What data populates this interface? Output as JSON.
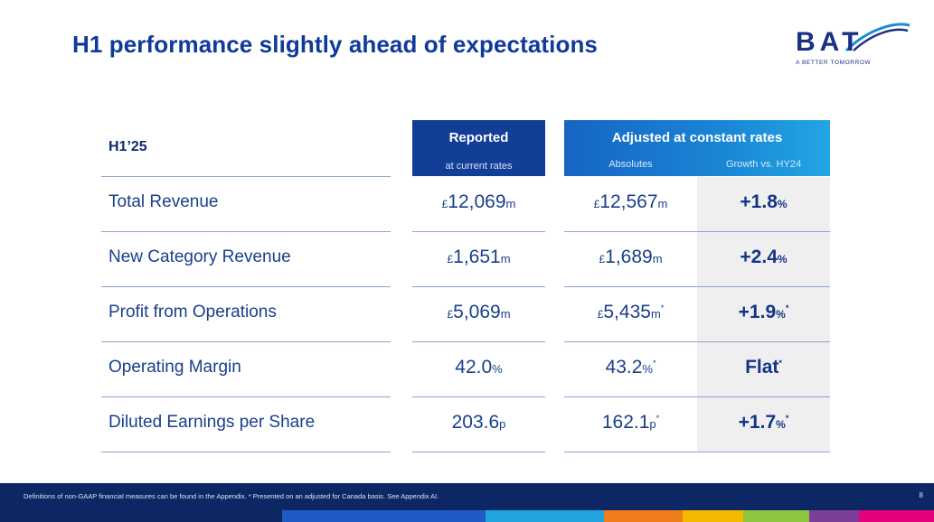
{
  "slide": {
    "title": "H1 performance slightly ahead of expectations",
    "page_number": "8"
  },
  "logo": {
    "wordmark": "BAT",
    "tagline": "A BETTER TOMORROW"
  },
  "table": {
    "period_label": "H1’25",
    "reported_header": "Reported",
    "reported_sub": "at current rates",
    "adjusted_header": "Adjusted at constant rates",
    "adjusted_sub_absolutes": "Absolutes",
    "adjusted_sub_growth": "Growth vs. HY24",
    "rows": [
      {
        "label": "Total Revenue",
        "reported": {
          "prefix": "£",
          "value": "12,069",
          "unit": "m",
          "star": ""
        },
        "absolute": {
          "prefix": "£",
          "value": "12,567",
          "unit": "m",
          "star": ""
        },
        "growth": {
          "prefix": "",
          "value": "+1.8",
          "unit": "%",
          "star": ""
        }
      },
      {
        "label": "New Category Revenue",
        "reported": {
          "prefix": "£",
          "value": "1,651",
          "unit": "m",
          "star": ""
        },
        "absolute": {
          "prefix": "£",
          "value": "1,689",
          "unit": "m",
          "star": ""
        },
        "growth": {
          "prefix": "",
          "value": "+2.4",
          "unit": "%",
          "star": ""
        }
      },
      {
        "label": "Profit from Operations",
        "reported": {
          "prefix": "£",
          "value": "5,069",
          "unit": "m",
          "star": ""
        },
        "absolute": {
          "prefix": "£",
          "value": "5,435",
          "unit": "m",
          "star": "*"
        },
        "growth": {
          "prefix": "",
          "value": "+1.9",
          "unit": "%",
          "star": "*"
        }
      },
      {
        "label": "Operating Margin",
        "reported": {
          "prefix": "",
          "value": "42.0",
          "unit": "%",
          "star": ""
        },
        "absolute": {
          "prefix": "",
          "value": "43.2",
          "unit": "%",
          "star": "*"
        },
        "growth": {
          "prefix": "",
          "value": "Flat",
          "unit": "",
          "star": "*"
        }
      },
      {
        "label": "Diluted Earnings per Share",
        "reported": {
          "prefix": "",
          "value": "203.6",
          "unit": "p",
          "star": ""
        },
        "absolute": {
          "prefix": "",
          "value": "162.1",
          "unit": "p",
          "star": "*"
        },
        "growth": {
          "prefix": "",
          "value": "+1.7",
          "unit": "%",
          "star": "*"
        }
      }
    ]
  },
  "footer": {
    "note": "Definitions of non-GAAP financial measures can be found in the Appendix. * Presented on an adjusted for Canada basis. See Appendix AI."
  },
  "colors": {
    "title": "#103a9a",
    "reported_header_bg": "#123e97",
    "adjusted_header_bg": "#1a86d6",
    "growth_column_bg": "#efeff0",
    "footer_bg": "#0d2765",
    "strip": [
      "#0d2765",
      "#1f5bc4",
      "#20a4e0",
      "#ef7d1a",
      "#f5b800",
      "#8cc63f",
      "#7b3f98",
      "#e5007d"
    ]
  }
}
